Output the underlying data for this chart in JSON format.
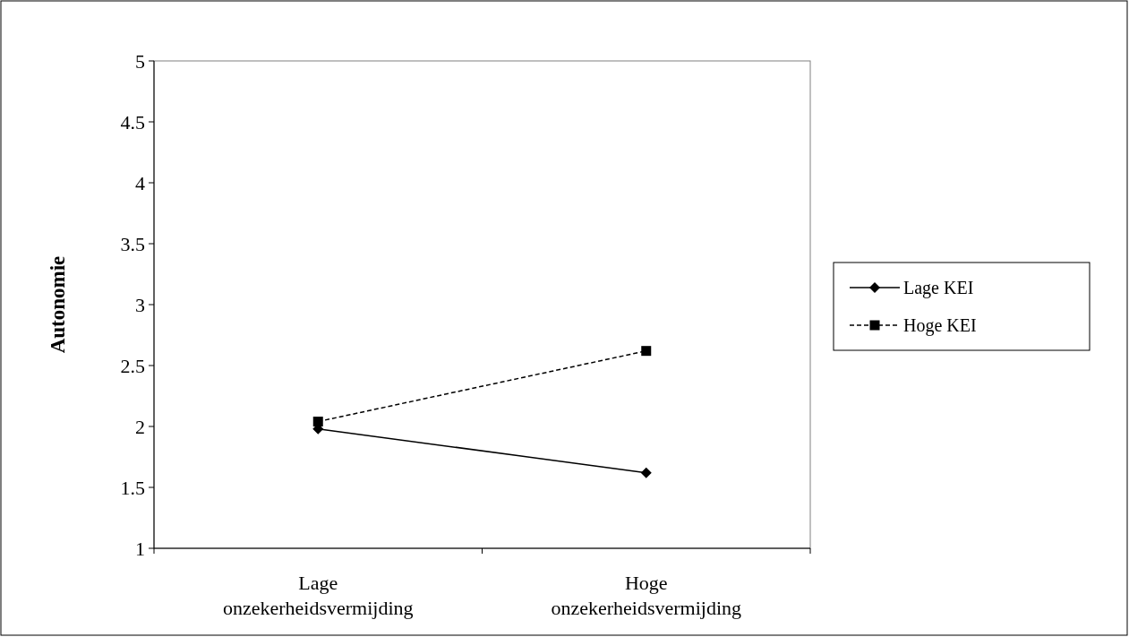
{
  "chart_data": {
    "type": "line",
    "ylabel": "Autonomie",
    "categories": [
      "Lage onzekerheidsvermijding",
      "Hoge onzekerheidsvermijding"
    ],
    "series": [
      {
        "name": "Lage KEI",
        "color": "#000000",
        "values": [
          1.98,
          1.62
        ],
        "marker": "diamond",
        "line_style": "solid"
      },
      {
        "name": "Hoge KEI",
        "color": "#000000",
        "values": [
          2.04,
          2.62
        ],
        "marker": "square",
        "line_style": "dashed"
      }
    ],
    "ylim": [
      1,
      5
    ],
    "yticks": [
      1,
      1.5,
      2,
      2.5,
      3,
      3.5,
      4,
      4.5,
      5
    ],
    "grid": false,
    "legend": "right"
  }
}
